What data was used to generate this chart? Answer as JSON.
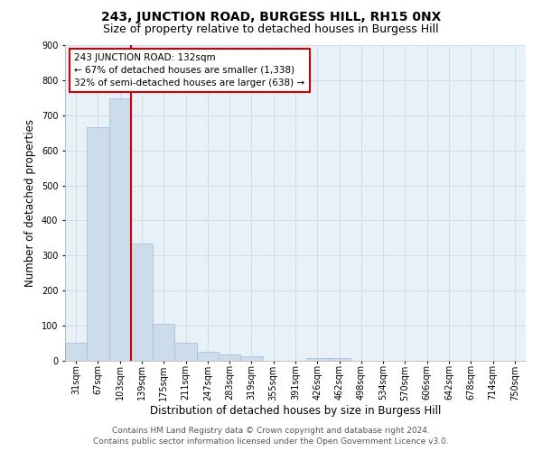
{
  "title": "243, JUNCTION ROAD, BURGESS HILL, RH15 0NX",
  "subtitle": "Size of property relative to detached houses in Burgess Hill",
  "xlabel": "Distribution of detached houses by size in Burgess Hill",
  "ylabel": "Number of detached properties",
  "categories": [
    "31sqm",
    "67sqm",
    "103sqm",
    "139sqm",
    "175sqm",
    "211sqm",
    "247sqm",
    "283sqm",
    "319sqm",
    "355sqm",
    "391sqm",
    "426sqm",
    "462sqm",
    "498sqm",
    "534sqm",
    "570sqm",
    "606sqm",
    "642sqm",
    "678sqm",
    "714sqm",
    "750sqm"
  ],
  "bar_values": [
    52,
    665,
    748,
    335,
    105,
    52,
    27,
    17,
    13,
    0,
    0,
    8,
    8,
    0,
    0,
    0,
    0,
    0,
    0,
    0,
    0
  ],
  "bar_color": "#cddceb",
  "bar_edge_color": "#a0bcd4",
  "grid_color": "#d0dde8",
  "background_color": "#e8f0f8",
  "annotation_box_color": "#ffffff",
  "annotation_border_color": "#cc0000",
  "property_line_color": "#cc0000",
  "annotation_text_line1": "243 JUNCTION ROAD: 132sqm",
  "annotation_text_line2": "← 67% of detached houses are smaller (1,338)",
  "annotation_text_line3": "32% of semi-detached houses are larger (638) →",
  "footer_line1": "Contains HM Land Registry data © Crown copyright and database right 2024.",
  "footer_line2": "Contains public sector information licensed under the Open Government Licence v3.0.",
  "ylim": [
    0,
    900
  ],
  "title_fontsize": 10,
  "subtitle_fontsize": 9,
  "axis_label_fontsize": 8.5,
  "tick_fontsize": 7,
  "annotation_fontsize": 7.5,
  "footer_fontsize": 6.5
}
